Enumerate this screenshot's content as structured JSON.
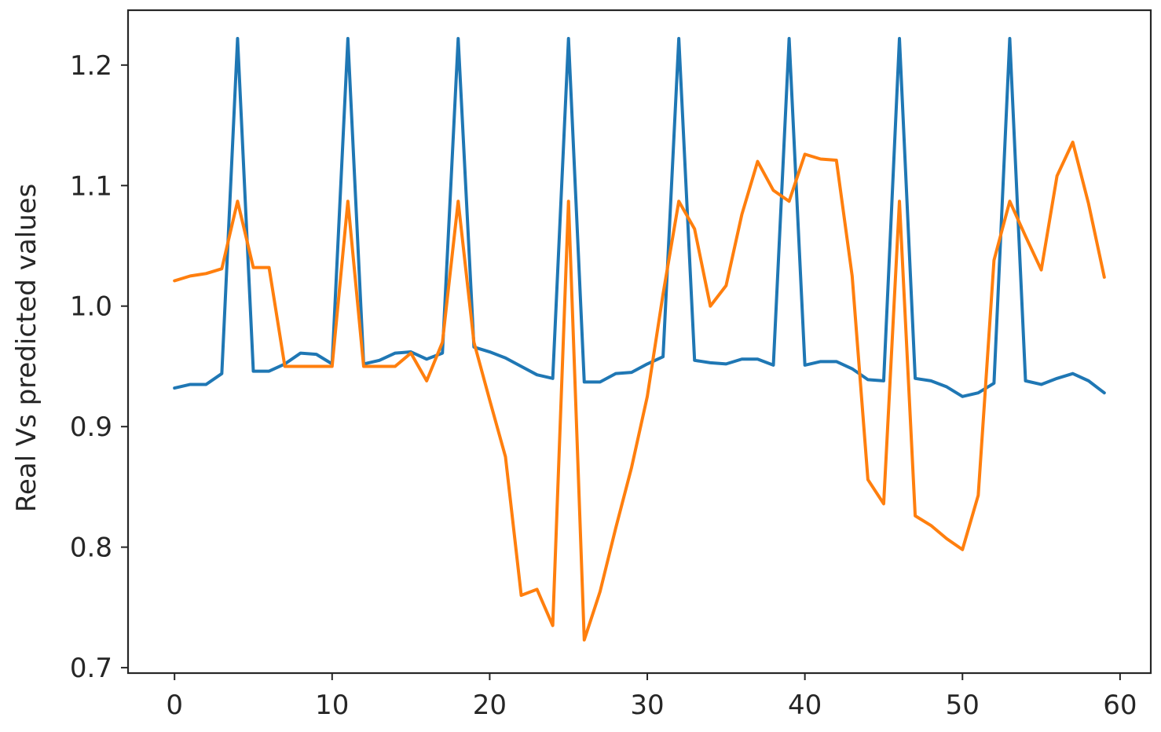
{
  "chart_data": {
    "type": "line",
    "title": "",
    "xlabel": "",
    "ylabel": "Real Vs predicted values",
    "xlim": [
      -2.95,
      61.95
    ],
    "ylim": [
      0.6955,
      1.2455
    ],
    "x_ticks": [
      0,
      10,
      20,
      30,
      40,
      50,
      60
    ],
    "y_ticks": [
      0.7,
      0.8,
      0.9,
      1.0,
      1.1,
      1.2
    ],
    "y_tick_labels": [
      "0.7",
      "0.8",
      "0.9",
      "1.0",
      "1.1",
      "1.2"
    ],
    "grid": false,
    "legend": "none",
    "x": [
      0,
      1,
      2,
      3,
      4,
      5,
      6,
      7,
      8,
      9,
      10,
      11,
      12,
      13,
      14,
      15,
      16,
      17,
      18,
      19,
      20,
      21,
      22,
      23,
      24,
      25,
      26,
      27,
      28,
      29,
      30,
      31,
      32,
      33,
      34,
      35,
      36,
      37,
      38,
      39,
      40,
      41,
      42,
      43,
      44,
      45,
      46,
      47,
      48,
      49,
      50,
      51,
      52,
      53,
      54,
      55,
      56,
      57,
      58,
      59
    ],
    "series": [
      {
        "color": "#1f77b4",
        "values": [
          0.932,
          0.935,
          0.935,
          0.944,
          1.222,
          0.946,
          0.946,
          0.952,
          0.961,
          0.96,
          0.952,
          1.222,
          0.952,
          0.955,
          0.961,
          0.962,
          0.956,
          0.961,
          1.222,
          0.966,
          0.962,
          0.957,
          0.95,
          0.943,
          0.94,
          1.222,
          0.937,
          0.937,
          0.944,
          0.945,
          0.952,
          0.958,
          1.222,
          0.955,
          0.953,
          0.952,
          0.956,
          0.956,
          0.951,
          1.222,
          0.951,
          0.954,
          0.954,
          0.948,
          0.939,
          0.938,
          1.222,
          0.94,
          0.938,
          0.933,
          0.925,
          0.928,
          0.936,
          1.222,
          0.938,
          0.935,
          0.94,
          0.944,
          0.938,
          0.928
        ]
      },
      {
        "color": "#ff7f0e",
        "values": [
          1.021,
          1.025,
          1.027,
          1.031,
          1.087,
          1.032,
          1.032,
          0.95,
          0.95,
          0.95,
          0.95,
          1.087,
          0.95,
          0.95,
          0.95,
          0.961,
          0.938,
          0.97,
          1.087,
          0.97,
          0.922,
          0.875,
          0.76,
          0.765,
          0.735,
          1.087,
          0.723,
          0.763,
          0.816,
          0.866,
          0.925,
          1.01,
          1.087,
          1.064,
          1.0,
          1.017,
          1.076,
          1.12,
          1.096,
          1.087,
          1.126,
          1.122,
          1.121,
          1.025,
          0.856,
          0.836,
          1.087,
          0.826,
          0.818,
          0.807,
          0.798,
          0.843,
          1.038,
          1.087,
          1.058,
          1.03,
          1.108,
          1.136,
          1.085,
          1.024
        ]
      }
    ]
  }
}
